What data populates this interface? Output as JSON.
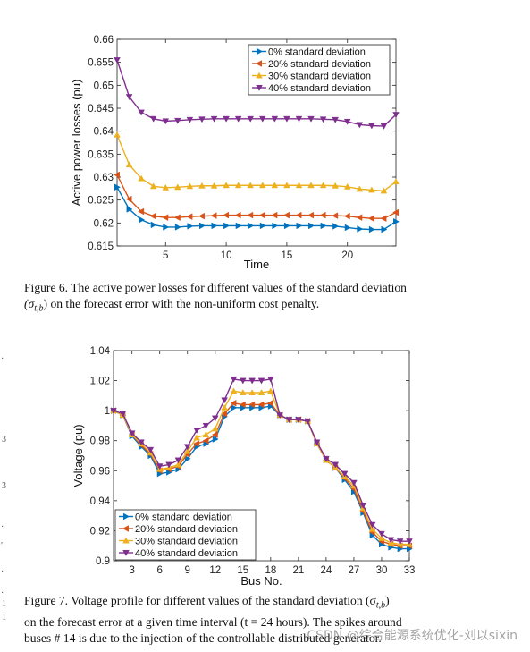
{
  "chart_data": [
    {
      "type": "line",
      "title": "",
      "xlabel": "Time",
      "ylabel": "Active power losses (pu)",
      "xlim": [
        1,
        24
      ],
      "ylim": [
        0.615,
        0.66
      ],
      "xticks": [
        5,
        10,
        15,
        20
      ],
      "yticks": [
        0.615,
        0.62,
        0.625,
        0.63,
        0.635,
        0.64,
        0.645,
        0.65,
        0.655,
        0.66
      ],
      "ytick_labels": [
        "0.615",
        "0.62",
        "0.625",
        "0.63",
        "0.635",
        "0.64",
        "0.645",
        "0.65",
        "0.655",
        "0.66"
      ],
      "legend_position": "top-right",
      "x": [
        1,
        2,
        3,
        4,
        5,
        6,
        7,
        8,
        9,
        10,
        11,
        12,
        13,
        14,
        15,
        16,
        17,
        18,
        19,
        20,
        21,
        22,
        23,
        24
      ],
      "series": [
        {
          "name": "0%   standard deviation",
          "color": "#0072BD",
          "marker": "triangle-right",
          "values": [
            0.6278,
            0.623,
            0.6207,
            0.6196,
            0.6191,
            0.6191,
            0.6193,
            0.6194,
            0.6194,
            0.6194,
            0.6194,
            0.6194,
            0.6194,
            0.6194,
            0.6194,
            0.6194,
            0.6194,
            0.6194,
            0.6193,
            0.619,
            0.6187,
            0.6186,
            0.6186,
            0.6203
          ]
        },
        {
          "name": "20% standard deviation",
          "color": "#D95319",
          "marker": "triangle-left",
          "values": [
            0.6305,
            0.6252,
            0.6225,
            0.6215,
            0.6212,
            0.6212,
            0.6214,
            0.6215,
            0.6216,
            0.6217,
            0.6217,
            0.6217,
            0.6217,
            0.6217,
            0.6217,
            0.6217,
            0.6217,
            0.6217,
            0.6216,
            0.6215,
            0.6212,
            0.621,
            0.621,
            0.6223
          ]
        },
        {
          "name": "30% standard deviation",
          "color": "#EDB120",
          "marker": "triangle-up",
          "values": [
            0.6392,
            0.6327,
            0.6297,
            0.628,
            0.6277,
            0.6278,
            0.628,
            0.6281,
            0.6281,
            0.6282,
            0.6282,
            0.6282,
            0.6282,
            0.6282,
            0.6282,
            0.6282,
            0.6282,
            0.6282,
            0.6281,
            0.6279,
            0.6274,
            0.6272,
            0.627,
            0.629
          ]
        },
        {
          "name": "40% standard deviation",
          "color": "#7E2F8E",
          "marker": "triangle-down",
          "values": [
            0.6555,
            0.6475,
            0.6441,
            0.6427,
            0.6422,
            0.6423,
            0.6425,
            0.6426,
            0.6427,
            0.6427,
            0.6427,
            0.6427,
            0.6427,
            0.6427,
            0.6427,
            0.6427,
            0.6427,
            0.6426,
            0.6425,
            0.6421,
            0.6414,
            0.6412,
            0.6411,
            0.6436
          ]
        }
      ]
    },
    {
      "type": "line",
      "title": "",
      "xlabel": "Bus No.",
      "ylabel": "Voltage (pu)",
      "xlim": [
        1,
        33
      ],
      "ylim": [
        0.9,
        1.04
      ],
      "xticks": [
        3,
        6,
        9,
        12,
        15,
        18,
        21,
        24,
        27,
        30,
        33
      ],
      "yticks": [
        0.9,
        0.92,
        0.94,
        0.96,
        0.98,
        1,
        1.02,
        1.04
      ],
      "ytick_labels": [
        "0.9",
        "0.92",
        "0.94",
        "0.96",
        "0.98",
        "1",
        "1.02",
        "1.04"
      ],
      "legend_position": "bottom-left",
      "x": [
        1,
        2,
        3,
        4,
        5,
        6,
        7,
        8,
        9,
        10,
        11,
        12,
        13,
        14,
        15,
        16,
        17,
        18,
        19,
        20,
        21,
        22,
        23,
        24,
        25,
        26,
        27,
        28,
        29,
        30,
        31,
        32,
        33
      ],
      "series": [
        {
          "name": "0% standard deviation",
          "color": "#0072BD",
          "marker": "triangle-right",
          "values": [
            1,
            0.997,
            0.983,
            0.976,
            0.97,
            0.958,
            0.959,
            0.961,
            0.968,
            0.976,
            0.978,
            0.981,
            0.996,
            1.002,
            1.002,
            1.002,
            1.002,
            1.003,
            0.997,
            0.994,
            0.994,
            0.993,
            0.978,
            0.967,
            0.962,
            0.954,
            0.946,
            0.932,
            0.917,
            0.911,
            0.909,
            0.908,
            0.908
          ]
        },
        {
          "name": "20% standard deviation",
          "color": "#D95319",
          "marker": "triangle-left",
          "values": [
            1,
            0.997,
            0.984,
            0.977,
            0.971,
            0.96,
            0.961,
            0.963,
            0.971,
            0.978,
            0.98,
            0.984,
            0.998,
            1.005,
            1.004,
            1.004,
            1.004,
            1.005,
            0.997,
            0.994,
            0.994,
            0.993,
            0.978,
            0.967,
            0.962,
            0.955,
            0.948,
            0.933,
            0.919,
            0.913,
            0.911,
            0.91,
            0.91
          ]
        },
        {
          "name": "30% standard deviation",
          "color": "#EDB120",
          "marker": "triangle-up",
          "values": [
            1,
            0.997,
            0.984,
            0.978,
            0.972,
            0.961,
            0.962,
            0.964,
            0.973,
            0.982,
            0.984,
            0.988,
            1.002,
            1.013,
            1.012,
            1.012,
            1.012,
            1.013,
            0.997,
            0.994,
            0.994,
            0.993,
            0.978,
            0.967,
            0.962,
            0.956,
            0.95,
            0.935,
            0.921,
            0.915,
            0.912,
            0.911,
            0.911
          ]
        },
        {
          "name": "40% standard deviation",
          "color": "#7E2F8E",
          "marker": "triangle-down",
          "values": [
            1,
            0.998,
            0.985,
            0.979,
            0.974,
            0.963,
            0.964,
            0.967,
            0.976,
            0.987,
            0.99,
            0.995,
            1.007,
            1.021,
            1.02,
            1.02,
            1.02,
            1.021,
            0.997,
            0.994,
            0.994,
            0.993,
            0.979,
            0.968,
            0.964,
            0.958,
            0.952,
            0.937,
            0.924,
            0.918,
            0.914,
            0.913,
            0.913
          ]
        }
      ]
    }
  ],
  "captions": {
    "fig6_line1": "Figure 6.  The active power losses for different values of the standard deviation",
    "fig6_line2": "(σ",
    "fig6_line2_sub": "t,b",
    "fig6_line2_rest": ") on the forecast error with the non-uniform cost penalty.",
    "fig7_line1": "Figure 7.  Voltage profile for different values of the standard deviation (σ",
    "fig7_line1_sub": "t,b",
    "fig7_line1_rest": ")",
    "fig7_line2": "on the forecast error at a given time interval (t = 24 hours). The spikes around",
    "fig7_line3": "buses # 14 is due to the injection of the controllable distributed generator."
  },
  "watermark": "CSDN @综合能源系统优化-刘以sixin",
  "margin_marks": [
    "·",
    "3",
    "3",
    "·",
    "′",
    "·",
    "·",
    "1",
    "1"
  ]
}
